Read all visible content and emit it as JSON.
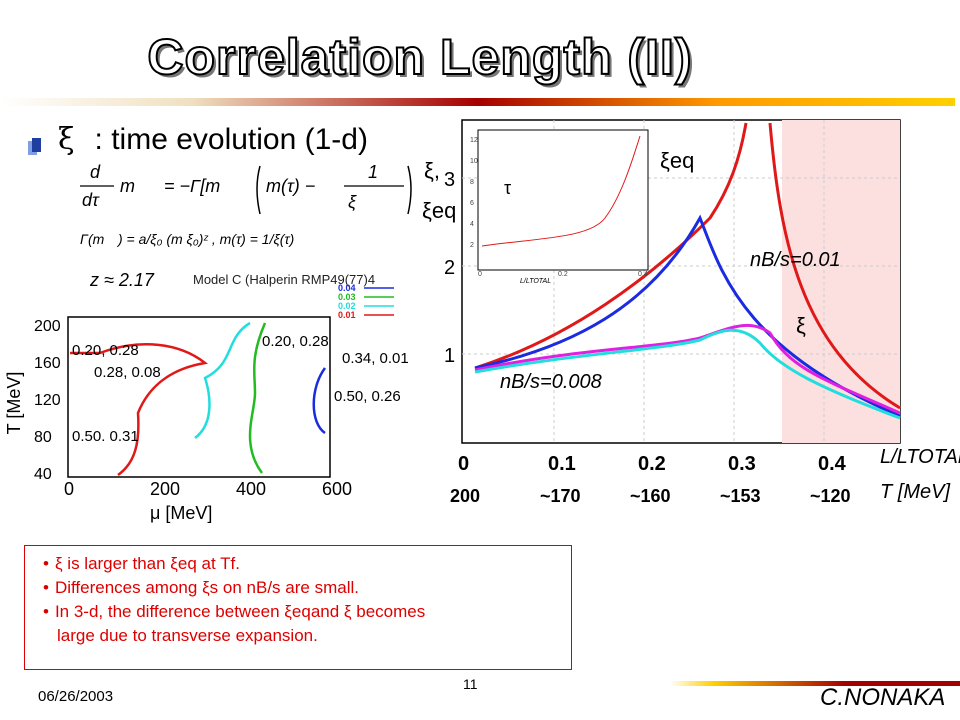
{
  "title": "Correlation Length (II)",
  "heading": {
    "xi": "ξ",
    "text": ": time evolution  (1-d)"
  },
  "model_note": "Model C (Halperin RMP49(77)4",
  "equation": {
    "lhs_d": "d",
    "lhs_dtau": "dτ",
    "m_tau": "m",
    "rhs": "= −Γ[m",
    "eq_one": "1",
    "eq_xi": "ξ",
    "gamma_line": "Γ(m",
    "z_line": "z ≈ 2.17"
  },
  "phase_diagram": {
    "ylabel": "T [MeV]",
    "xlabel": "μ [MeV]",
    "yticks": [
      "200",
      "160",
      "120",
      "80",
      "40"
    ],
    "xticks": [
      "0",
      "200",
      "400",
      "600"
    ],
    "legend": [
      "0.04",
      "0.03",
      "0.02",
      "0.01"
    ],
    "legend_colors": [
      "#1a2be0",
      "#22bb22",
      "#22dddd",
      "#e01818"
    ],
    "annotations": [
      "0.20, 0.28",
      "0.28, 0.08",
      "0.50. 0.31",
      "0.20, 0.28",
      "0.34, 0.01",
      "0.50, 0.26"
    ]
  },
  "evolution_plot": {
    "yticks": [
      "1",
      "2",
      "3"
    ],
    "xticks": [
      "0",
      "0.1",
      "0.2",
      "0.3",
      "0.4"
    ],
    "tticks": [
      "200",
      "~170",
      "~160",
      "~153",
      "~120"
    ],
    "xi_label": "ξ,",
    "xi_eq_label": "ξeq",
    "xi_eq_curve": "ξeq",
    "xi_curve": "ξ",
    "nb_001": "nB/s=0.01",
    "nb_0008": "nB/s=0.008",
    "x_axis_label": "L/LTOTAL",
    "t_axis_label": "T  [MeV]",
    "inset": {
      "label": "τ",
      "yticks": [
        "12",
        "10",
        "8",
        "6",
        "4",
        "2"
      ],
      "xticks": [
        "0",
        "0.2",
        "0.4"
      ],
      "xlabel": "L/LTOTAL"
    }
  },
  "notes": [
    {
      "pre": "ξ is larger than ",
      "sym": "ξeq",
      "post": " at Tf."
    },
    {
      "pre": "Differences among ",
      "sym": "ξs",
      "post": " on nB/s  are small."
    },
    {
      "pre": "In 3-d, the difference between ",
      "sym": "ξeq",
      "post": "and  ξ  becomes"
    },
    {
      "pre": "large due to transverse expansion.",
      "sym": "",
      "post": ""
    }
  ],
  "footer": {
    "date": "06/26/2003",
    "page": "11",
    "author": "C.NONAKA"
  }
}
